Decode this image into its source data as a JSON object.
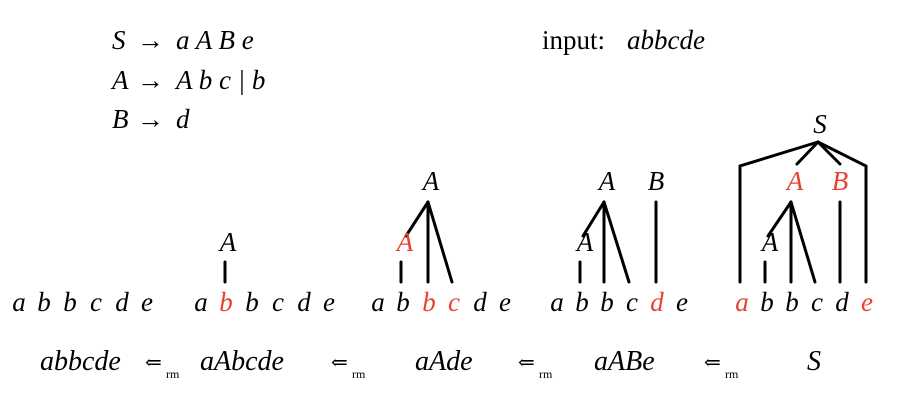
{
  "colors": {
    "text": "#000000",
    "highlight": "#e8412f",
    "line": "#000000"
  },
  "grammar": [
    {
      "lhs": "S",
      "arrow": "→",
      "rhs": "a A B e"
    },
    {
      "lhs": "A",
      "arrow": "→",
      "rhs": "A b c | b"
    },
    {
      "lhs": "B",
      "arrow": "→",
      "rhs": "d"
    }
  ],
  "input": {
    "label": "input:",
    "value": "abbcde"
  },
  "stages": [
    {
      "symbols": [
        "a",
        "b",
        "b",
        "c",
        "d",
        "e"
      ],
      "highlight": []
    },
    {
      "symbols": [
        "a",
        "b",
        "b",
        "c",
        "d",
        "e"
      ],
      "highlight": [
        1
      ],
      "nodes": [
        "A"
      ]
    },
    {
      "symbols": [
        "a",
        "b",
        "b",
        "c",
        "d",
        "e"
      ],
      "highlight": [
        2,
        3
      ],
      "nodes": [
        "A",
        "A"
      ],
      "highlight_nodes": [
        0
      ]
    },
    {
      "symbols": [
        "a",
        "b",
        "b",
        "c",
        "d",
        "e"
      ],
      "highlight": [
        4
      ],
      "nodes": [
        "A",
        "A",
        "B"
      ]
    },
    {
      "symbols": [
        "a",
        "b",
        "b",
        "c",
        "d",
        "e"
      ],
      "highlight": [
        0,
        5
      ],
      "nodes": [
        "A",
        "A",
        "B",
        "S"
      ],
      "highlight_nodes": [
        1,
        2
      ]
    }
  ],
  "derivation": {
    "forms": [
      "abbcde",
      "aAbcde",
      "aAde",
      "aABe",
      "S"
    ],
    "arrow": "⇐",
    "subscript": "rm"
  }
}
